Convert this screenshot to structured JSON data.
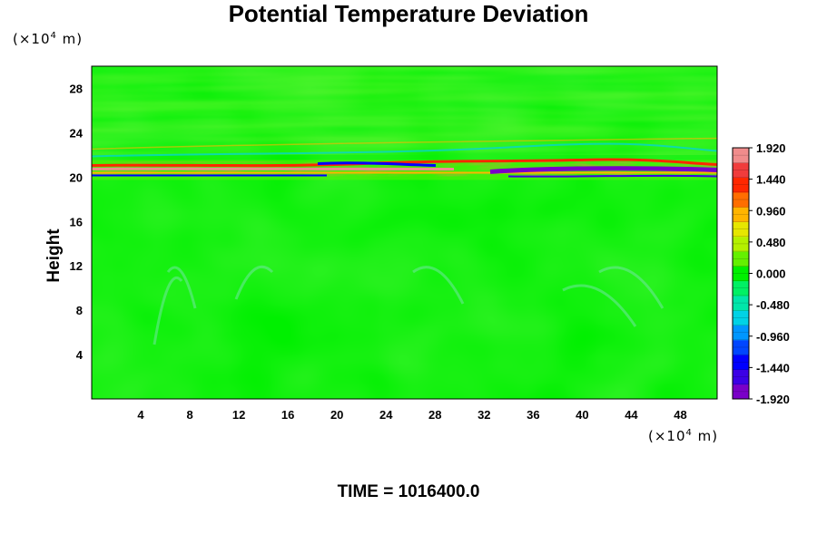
{
  "header": {
    "title": "Potential Temperature Deviation",
    "y_unit_prefix": "(×10",
    "y_unit_exp": "4",
    "y_unit_suffix": " m)",
    "x_unit_prefix": "(×10",
    "x_unit_exp": "4",
    "x_unit_suffix": " m)",
    "ylabel": "Height"
  },
  "footer": {
    "time_label": "TIME = 1016400.0"
  },
  "chart_data": {
    "type": "heatmap",
    "title": "Potential Temperature Deviation",
    "xlabel": "",
    "ylabel": "Height",
    "x_unit": "(×10^4 m)",
    "y_unit": "(×10^4 m)",
    "xlim": [
      0,
      51
    ],
    "ylim": [
      0,
      30
    ],
    "x_ticks": [
      "4",
      "8",
      "12",
      "16",
      "20",
      "24",
      "28",
      "32",
      "36",
      "40",
      "44",
      "48"
    ],
    "y_ticks": [
      "4",
      "8",
      "12",
      "16",
      "20",
      "24",
      "28"
    ],
    "x_tick_values": [
      4,
      8,
      12,
      16,
      20,
      24,
      28,
      32,
      36,
      40,
      44,
      48
    ],
    "y_tick_values": [
      4,
      8,
      12,
      16,
      20,
      24,
      28
    ],
    "colorbar": {
      "min": -1.92,
      "max": 1.92,
      "labels": [
        "1.920",
        "1.440",
        "0.960",
        "0.480",
        "0.000",
        "-0.480",
        "-0.960",
        "-1.440",
        "-1.920"
      ],
      "label_values": [
        1.92,
        1.44,
        0.96,
        0.48,
        0.0,
        -0.48,
        -0.96,
        -1.44,
        -1.92
      ],
      "colors": [
        "#7a00c8",
        "#3c00e6",
        "#0000ff",
        "#0046ff",
        "#0096ff",
        "#00d2e6",
        "#00e6aa",
        "#00f064",
        "#00f000",
        "#64f000",
        "#b4f000",
        "#e6e600",
        "#ffb400",
        "#ff6e00",
        "#ff2800",
        "#f03c3c",
        "#f08c8c"
      ]
    },
    "field_description_values": {
      "background": 0.0,
      "strong_band_height": 20.4,
      "band_peak_positive": 1.92,
      "band_peak_negative": -1.92
    },
    "annotation": "TIME = 1016400.0"
  }
}
